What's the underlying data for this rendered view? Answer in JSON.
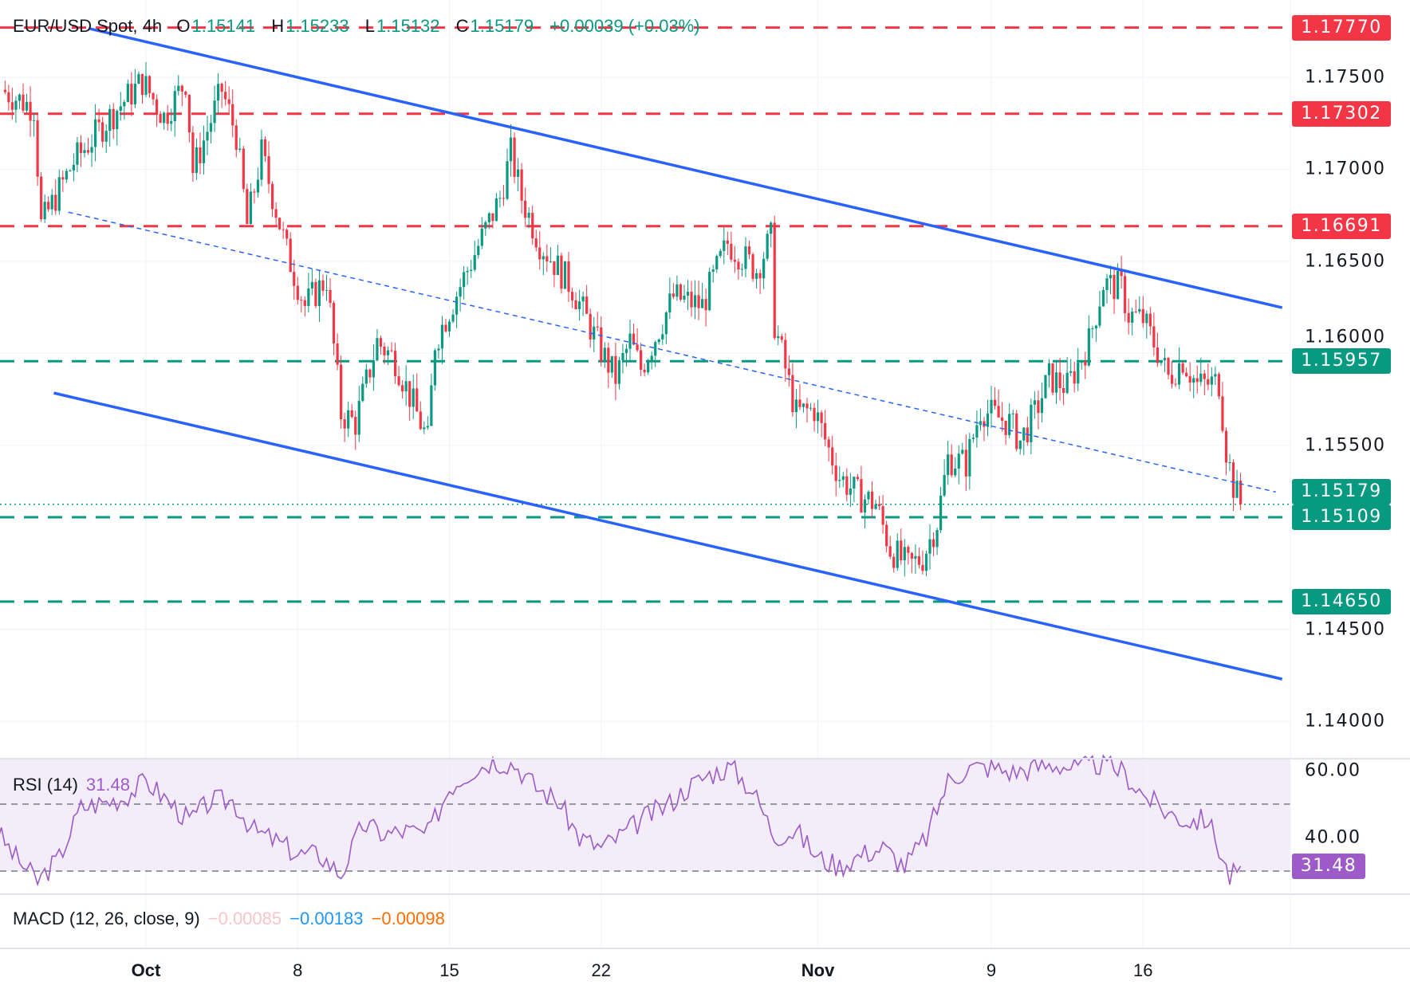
{
  "legend": {
    "symbol": "EUR/USD Spot, 4h",
    "o_label": "O",
    "open": "1.15141",
    "h_label": "H",
    "high": "1.15233",
    "l_label": "L",
    "low": "1.15132",
    "c_label": "C",
    "close": "1.15179",
    "change": "+0.00039 (+0.03%)"
  },
  "rsi_legend": {
    "label": "RSI (14)",
    "value": "31.48"
  },
  "macd_legend": {
    "label": "MACD (12, 26, close, 9)",
    "histogram": "−0.00085",
    "macd": "−0.00183",
    "signal": "−0.00098"
  },
  "colors": {
    "up": "#089981",
    "down": "#f23645",
    "trendline": "#2962ff",
    "rsi": "#9c5bc6",
    "macd_hist": "#f7c5cc",
    "macd_line": "#2196f3",
    "macd_signal": "#ff6d00"
  },
  "chart_data": {
    "type": "candlestick",
    "title": "EUR/USD Spot, 4h",
    "ylim": [
      1.1375,
      1.1785
    ],
    "y_ticks": [
      "1.17500",
      "1.17000",
      "1.16500",
      "1.16000",
      "1.15500",
      "1.14500",
      "1.14000"
    ],
    "x_ticks": [
      {
        "date": "Oct 1",
        "label": "Oct",
        "bold": true
      },
      {
        "date": "Oct 8",
        "label": "8"
      },
      {
        "date": "Oct 15",
        "label": "15"
      },
      {
        "date": "Oct 22",
        "label": "22"
      },
      {
        "date": "Nov 1",
        "label": "Nov",
        "bold": true
      },
      {
        "date": "Nov 9",
        "label": "9"
      },
      {
        "date": "Nov 16",
        "label": "16"
      }
    ],
    "grid": true,
    "approx_close_path": [
      [
        "Sep 24 08:00",
        1.17432
      ],
      [
        "Sep 25 20:00",
        1.17334
      ],
      [
        "Sep 26 04:00",
        1.16698
      ],
      [
        "Sep 27 16:00",
        1.1704
      ],
      [
        "Sep 29 08:00",
        1.17285
      ],
      [
        "Sep 30 20:00",
        1.1748
      ],
      [
        "Oct 1 20:00",
        1.17285
      ],
      [
        "Oct 2 20:00",
        1.1748
      ],
      [
        "Oct 3 04:00",
        1.16991
      ],
      [
        "Oct 4 12:00",
        1.17432
      ],
      [
        "Oct 5 04:00",
        1.17187
      ],
      [
        "Oct 5 16:00",
        1.16698
      ],
      [
        "Oct 6 08:00",
        1.17089
      ],
      [
        "Oct 7 12:00",
        1.16551
      ],
      [
        "Oct 8 08:00",
        1.16258
      ],
      [
        "Oct 9 08:00",
        1.16405
      ],
      [
        "Oct 10 00:00",
        1.15671
      ],
      [
        "Oct 10 16:00",
        1.15622
      ],
      [
        "Oct 11 16:00",
        1.16062
      ],
      [
        "Oct 12 12:00",
        1.15965
      ],
      [
        "Oct 13 08:00",
        1.1572
      ],
      [
        "Oct 14 00:00",
        1.15524
      ],
      [
        "Oct 14 08:00",
        1.16062
      ],
      [
        "Oct 15 20:00",
        1.16454
      ],
      [
        "Oct 17 08:00",
        1.16845
      ],
      [
        "Oct 17 20:00",
        1.17089
      ],
      [
        "Oct 18 08:00",
        1.16845
      ],
      [
        "Oct 19 04:00",
        1.166
      ],
      [
        "Oct 20 16:00",
        1.16356
      ],
      [
        "Oct 22 00:00",
        1.16013
      ],
      [
        "Oct 22 16:00",
        1.15867
      ],
      [
        "Oct 23 08:00",
        1.16062
      ],
      [
        "Oct 23 20:00",
        1.15916
      ],
      [
        "Oct 25 08:00",
        1.16307
      ],
      [
        "Oct 26 16:00",
        1.16258
      ],
      [
        "Oct 27 20:00",
        1.166
      ],
      [
        "Oct 29 04:00",
        1.16454
      ],
      [
        "Oct 29 20:00",
        1.16625
      ],
      [
        "Oct 30 00:00",
        1.1616
      ],
      [
        "Oct 31 00:00",
        1.15671
      ],
      [
        "Oct 31 20:00",
        1.15696
      ],
      [
        "Nov 1 12:00",
        1.15476
      ],
      [
        "Nov 2 00:00",
        1.15329
      ],
      [
        "Nov 2 20:00",
        1.15231
      ],
      [
        "Nov 3 16:00",
        1.15182
      ],
      [
        "Nov 4 08:00",
        1.14938
      ],
      [
        "Nov 5 04:00",
        1.1484
      ],
      [
        "Nov 5 20:00",
        1.14889
      ],
      [
        "Nov 6 12:00",
        1.15084
      ],
      [
        "Nov 7 00:00",
        1.15427
      ],
      [
        "Nov 7 20:00",
        1.15402
      ],
      [
        "Nov 8 12:00",
        1.15696
      ],
      [
        "Nov 9 20:00",
        1.15622
      ],
      [
        "Nov 10 08:00",
        1.15524
      ],
      [
        "Nov 11 00:00",
        1.15671
      ],
      [
        "Nov 11 16:00",
        1.15867
      ],
      [
        "Nov 12 12:00",
        1.15818
      ],
      [
        "Nov 13 12:00",
        1.16062
      ],
      [
        "Nov 14 04:00",
        1.1638
      ],
      [
        "Nov 15 00:00",
        1.16356
      ],
      [
        "Nov 15 08:00",
        1.16209
      ],
      [
        "Nov 16 00:00",
        1.16185
      ],
      [
        "Nov 16 16:00",
        1.16013
      ],
      [
        "Nov 17 04:00",
        1.15867
      ],
      [
        "Nov 17 20:00",
        1.15965
      ],
      [
        "Nov 18 12:00",
        1.15828
      ],
      [
        "Nov 19 12:00",
        1.15842
      ],
      [
        "Nov 19 20:00",
        1.15476
      ],
      [
        "Nov 20 04:00",
        1.1528
      ],
      [
        "Nov 20 12:00",
        1.15179
      ]
    ],
    "horizontal_levels": [
      {
        "price": "1.17770",
        "kind": "resistance",
        "color": "#f23645"
      },
      {
        "price": "1.17302",
        "kind": "resistance",
        "color": "#f23645"
      },
      {
        "price": "1.16691",
        "kind": "resistance",
        "color": "#f23645"
      },
      {
        "price": "1.15957",
        "kind": "support",
        "color": "#089981"
      },
      {
        "price": "1.15109",
        "kind": "support",
        "color": "#089981"
      },
      {
        "price": "1.14650",
        "kind": "support",
        "color": "#089981"
      }
    ],
    "last_price": {
      "price": "1.15179",
      "color": "#089981"
    },
    "trendlines": [
      {
        "name": "channel-upper",
        "style": "solid",
        "from": [
          "Sep 28 10:00",
          1.17764
        ],
        "to": [
          "Nov 22 10:00",
          1.16248
        ]
      },
      {
        "name": "channel-lower",
        "style": "solid",
        "from": [
          "Sep 26 18:00",
          1.15784
        ],
        "to": [
          "Nov 22 10:00",
          1.14229
        ]
      },
      {
        "name": "channel-mid",
        "style": "dashed",
        "from": [
          "Sep 27 10:00",
          1.16767
        ],
        "to": [
          "Nov 22 03:00",
          1.15246
        ]
      }
    ],
    "rsi": {
      "ylim": [
        26,
        64
      ],
      "y_ticks": [
        "60.00",
        "40.00"
      ],
      "bands": [
        50,
        30
      ],
      "last": "31.48",
      "values": [
        [
          "Sep 24 00:00",
          43
        ],
        [
          "Sep 25 00:00",
          34
        ],
        [
          "Sep 26 00:00",
          27
        ],
        [
          "Sep 27 00:00",
          34
        ],
        [
          "Sep 28 00:00",
          49
        ],
        [
          "Sep 29 00:00",
          50.5
        ],
        [
          "Sep 30 00:00",
          52
        ],
        [
          "Oct 1 00:00",
          57
        ],
        [
          "Oct 2 00:00",
          51
        ],
        [
          "Oct 3 00:00",
          45
        ],
        [
          "Oct 4 00:00",
          51
        ],
        [
          "Oct 5 00:00",
          51
        ],
        [
          "Oct 6 00:00",
          42
        ],
        [
          "Oct 7 00:00",
          39
        ],
        [
          "Oct 8 00:00",
          35
        ],
        [
          "Oct 9 00:00",
          35
        ],
        [
          "Oct 10 00:00",
          29
        ],
        [
          "Oct 11 00:00",
          44
        ],
        [
          "Oct 12 00:00",
          41
        ],
        [
          "Oct 13 00:00",
          42
        ],
        [
          "Oct 14 00:00",
          41
        ],
        [
          "Oct 15 00:00",
          55
        ],
        [
          "Oct 16 00:00",
          60
        ],
        [
          "Oct 17 00:00",
          63
        ],
        [
          "Oct 18 00:00",
          62
        ],
        [
          "Oct 19 00:00",
          55
        ],
        [
          "Oct 20 00:00",
          51
        ],
        [
          "Oct 21 00:00",
          40
        ],
        [
          "Oct 22 00:00",
          37
        ],
        [
          "Oct 23 00:00",
          41
        ],
        [
          "Oct 24 00:00",
          46
        ],
        [
          "Oct 25 00:00",
          49.5
        ],
        [
          "Oct 26 00:00",
          55
        ],
        [
          "Oct 27 00:00",
          59
        ],
        [
          "Oct 28 00:00",
          61
        ],
        [
          "Oct 29 00:00",
          54
        ],
        [
          "Oct 30 00:00",
          40.5
        ],
        [
          "Oct 31 00:00",
          42
        ],
        [
          "Nov 1 00:00",
          34
        ],
        [
          "Nov 2 00:00",
          31.5
        ],
        [
          "Nov 3 00:00",
          35
        ],
        [
          "Nov 4 00:00",
          37
        ],
        [
          "Nov 5 00:00",
          31.5
        ],
        [
          "Nov 6 00:00",
          40
        ],
        [
          "Nov 7 00:00",
          57
        ],
        [
          "Nov 8 00:00",
          61
        ],
        [
          "Nov 9 00:00",
          61
        ],
        [
          "Nov 10 00:00",
          59.5
        ],
        [
          "Nov 11 00:00",
          61
        ],
        [
          "Nov 12 00:00",
          62
        ],
        [
          "Nov 13 00:00",
          60.5
        ],
        [
          "Nov 14 00:00",
          62
        ],
        [
          "Nov 15 00:00",
          60
        ],
        [
          "Nov 16 00:00",
          53
        ],
        [
          "Nov 17 00:00",
          48
        ],
        [
          "Nov 18 00:00",
          45
        ],
        [
          "Nov 19 00:00",
          45.5
        ],
        [
          "Nov 20 00:00",
          28
        ],
        [
          "Nov 20 12:00",
          31.48
        ]
      ]
    }
  }
}
